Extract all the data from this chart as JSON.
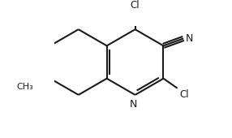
{
  "background_color": "#ffffff",
  "line_color": "#1a1a1a",
  "line_width": 1.5,
  "figsize": [
    2.86,
    1.7
  ],
  "dpi": 100,
  "xlim": [
    -1.6,
    2.5
  ],
  "ylim": [
    -1.8,
    1.6
  ]
}
